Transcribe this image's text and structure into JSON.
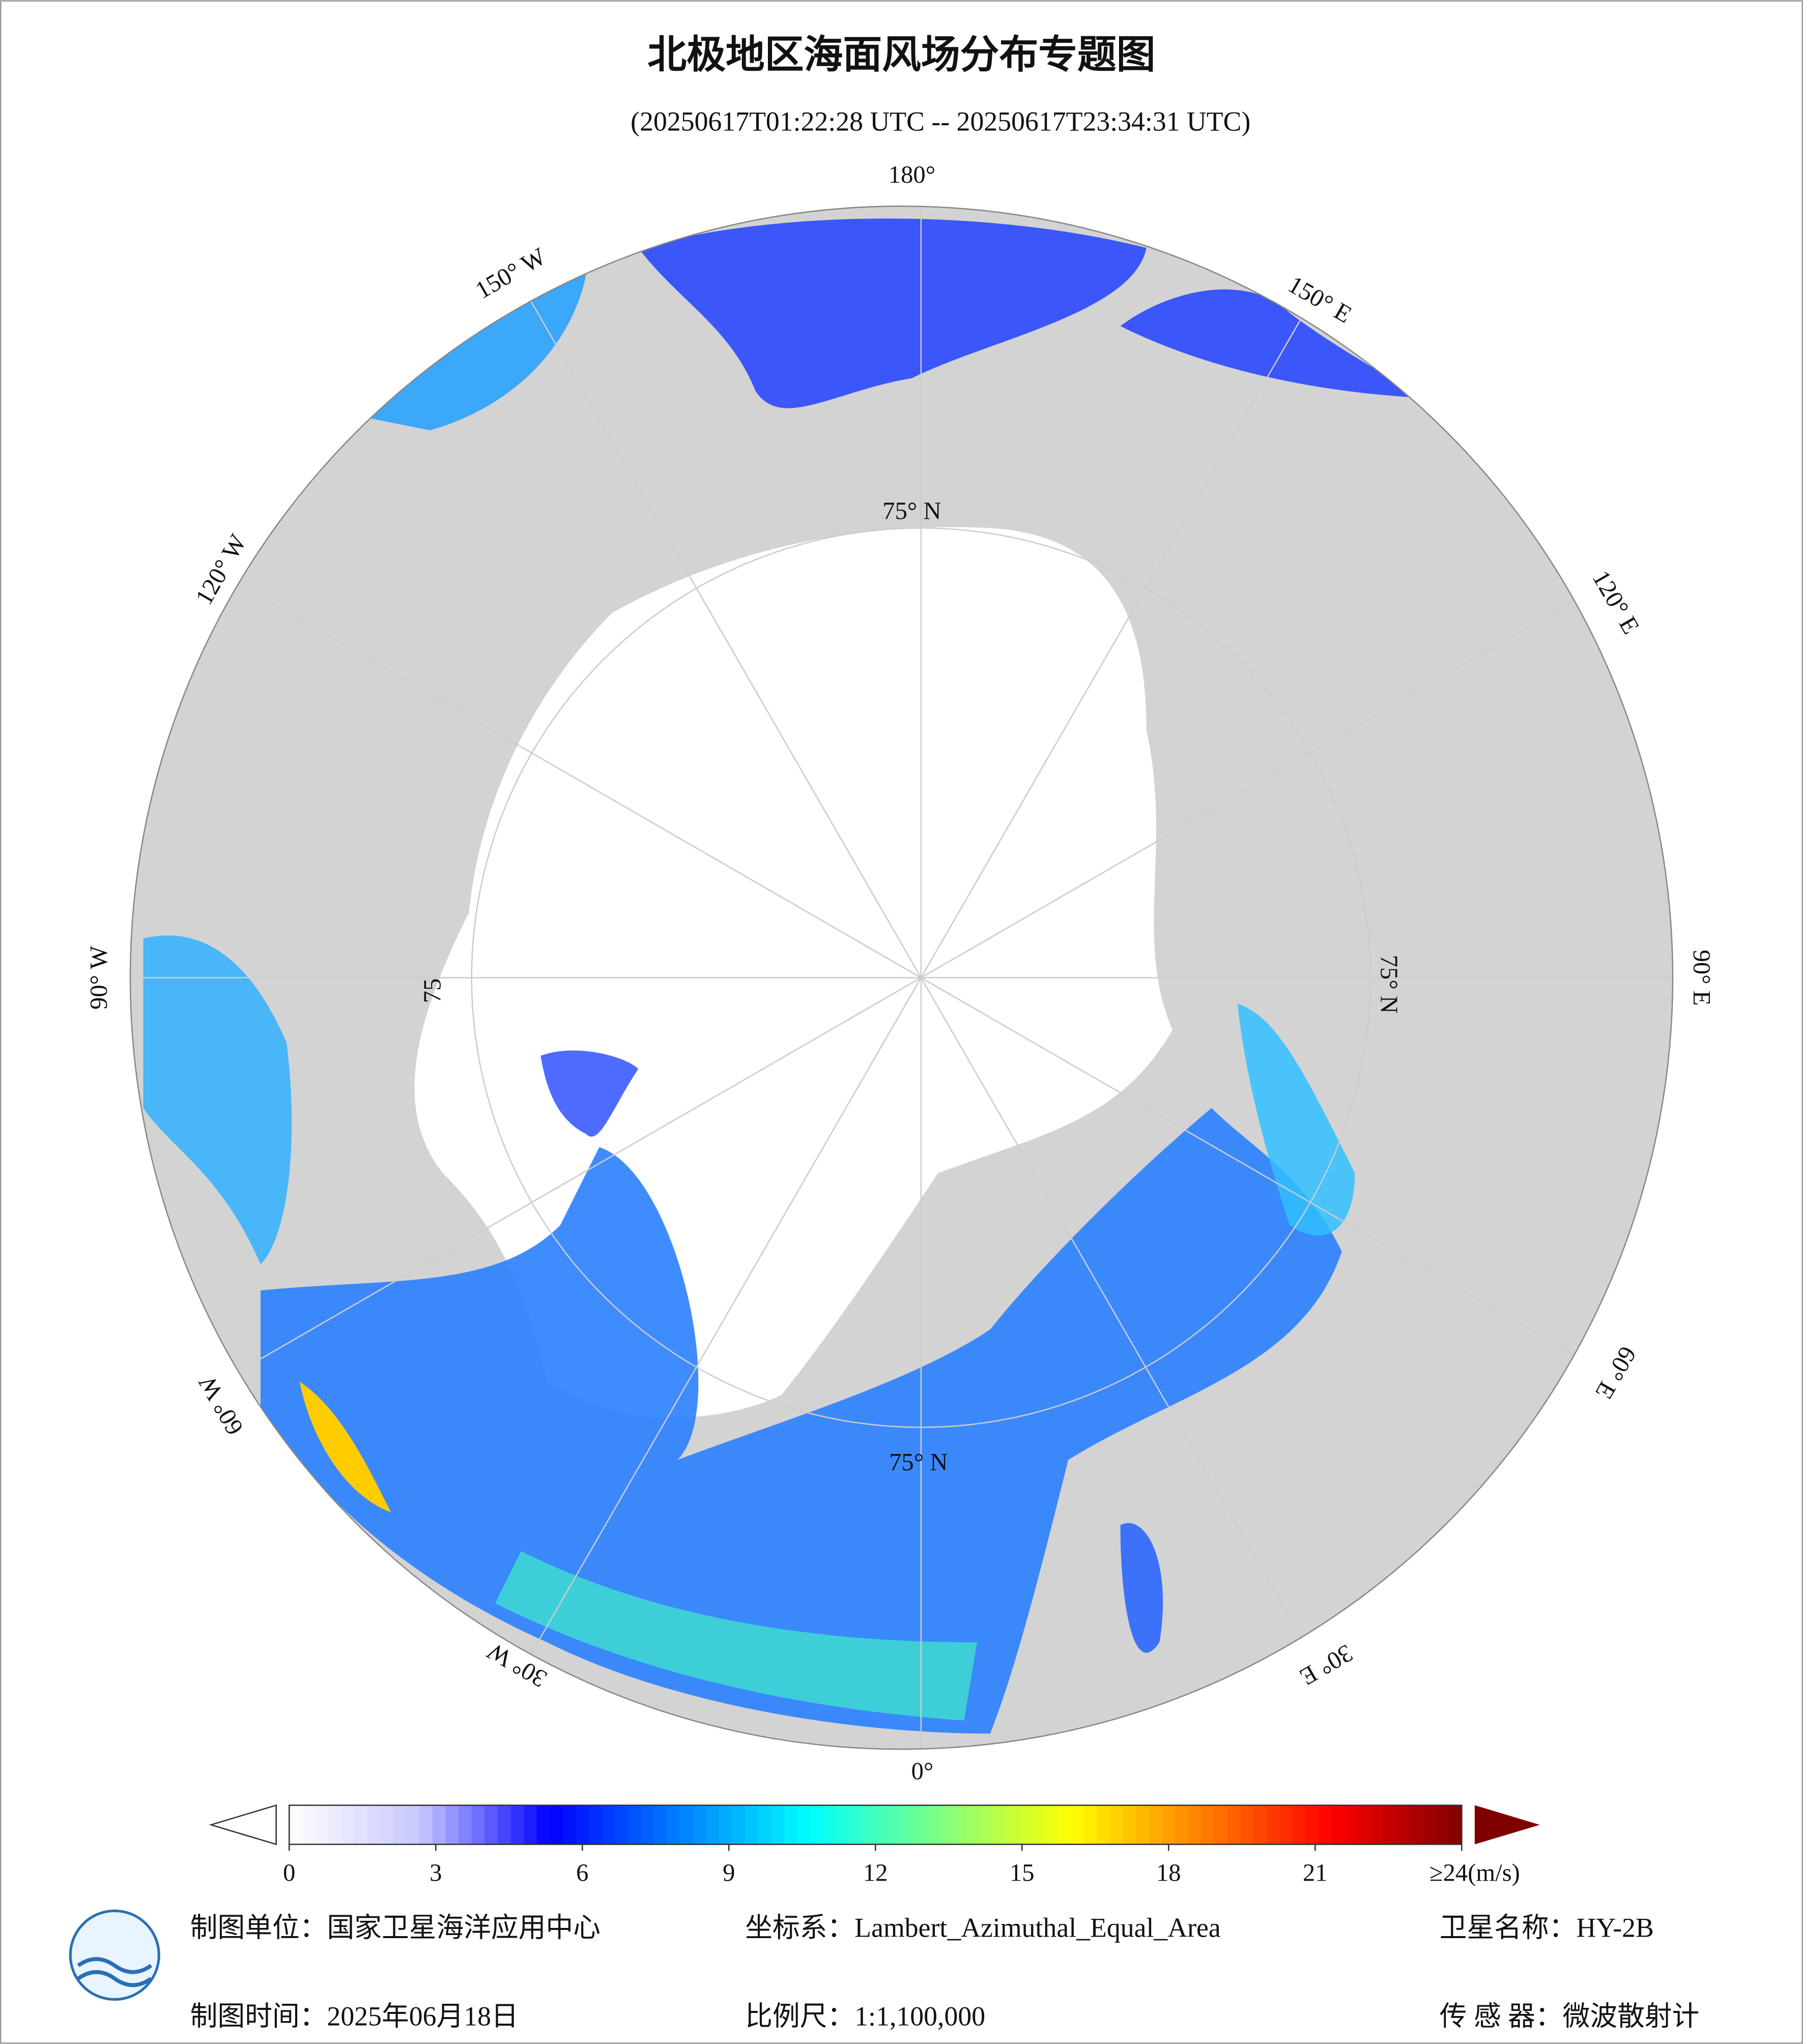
{
  "title": "北极地区海面风场分布专题图",
  "subtitle": "(20250617T01:22:28 UTC -- 20250617T23:34:31 UTC)",
  "map": {
    "longitude_labels": [
      "180°",
      "150° E",
      "120° E",
      "90° E",
      "60° E",
      "30° E",
      "0°",
      "30° W",
      "60° W",
      "90° W",
      "120° W",
      "150° W"
    ],
    "latitude_labels": [
      "75° N",
      "75° N",
      "75° N",
      "75"
    ]
  },
  "colorbar": {
    "range": [
      0,
      24
    ],
    "ticks": [
      0,
      3,
      6,
      9,
      12,
      15,
      18,
      21,
      {
        "value": 24,
        "label": "≥24(m/s)"
      }
    ],
    "colors": [
      "#ffffff",
      "#c8c8ff",
      "#0000ff",
      "#0080ff",
      "#00ffff",
      "#80ff80",
      "#ffff00",
      "#ff8000",
      "#ff0000",
      "#800000"
    ]
  },
  "footer": {
    "unit": "制图单位：国家卫星海洋应用中心",
    "projection": "坐标系：Lambert_Azimuthal_Equal_Area",
    "satellite": "卫星名称：HY-2B",
    "date": "制图时间：2025年06月18日",
    "scale": "比例尺：1:1,100,000",
    "sensor": "传 感 器：微波散射计"
  }
}
